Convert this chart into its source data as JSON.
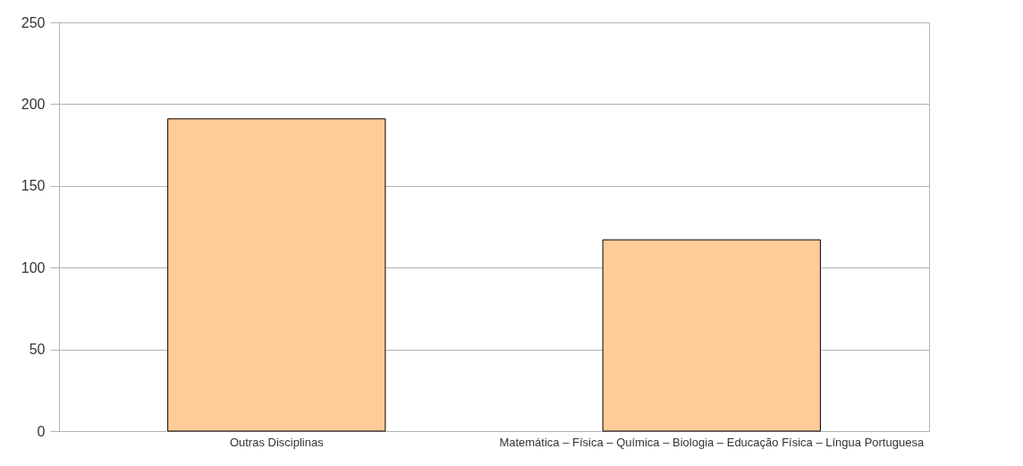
{
  "chart_data": {
    "type": "bar",
    "categories": [
      "Outras Disciplinas",
      "Matemática – Física – Química – Biologia – Educação Física – Língua Portuguesa"
    ],
    "values": [
      191,
      117
    ],
    "color": "#ffcc99",
    "ylim": [
      0,
      250
    ],
    "yticks": [
      0,
      50,
      100,
      150,
      200,
      250
    ],
    "grid": "y"
  }
}
